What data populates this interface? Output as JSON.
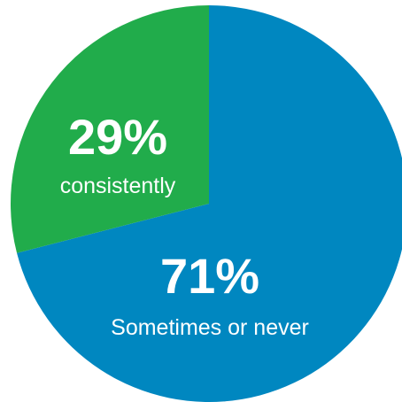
{
  "chart_data": {
    "type": "pie",
    "title": "",
    "slices": [
      {
        "label": "Sometimes or never",
        "value": 71,
        "value_label": "71%",
        "color": "#0087C0"
      },
      {
        "label": "consistently",
        "value": 29,
        "value_label": "29%",
        "color": "#21AC4B"
      }
    ],
    "start_angle": "12 o'clock",
    "direction": "clockwise",
    "legend": "none"
  }
}
